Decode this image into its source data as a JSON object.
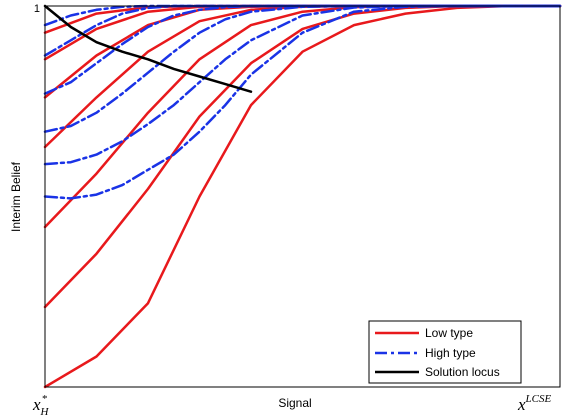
{
  "chart_data": {
    "type": "line",
    "xlabel": "Signal",
    "ylabel": "Interim Belief",
    "x_tick_labels": [
      {
        "base": "x",
        "sub": "H",
        "sup": "*",
        "value": 0
      },
      {
        "base": "x",
        "sub": "",
        "sup": "LCSE",
        "value": 1
      }
    ],
    "y_tick_labels": [
      {
        "label": "1",
        "value": 1
      }
    ],
    "xlim": [
      0,
      1
    ],
    "ylim": [
      0,
      1
    ],
    "grid": false,
    "legend": {
      "position": "bottom-right",
      "entries": [
        {
          "label": "Low type",
          "color": "#e8191c",
          "style": "solid"
        },
        {
          "label": "High type",
          "color": "#1a33e6",
          "style": "dashdot"
        },
        {
          "label": "Solution locus",
          "color": "#000000",
          "style": "solid"
        }
      ]
    },
    "series": [
      {
        "name": "Low type",
        "color": "#e8191c",
        "style": "solid",
        "curves": [
          {
            "x": [
              0,
              0.1,
              0.2,
              0.3,
              0.4,
              0.5,
              0.6,
              0.7,
              0.8,
              0.9,
              1.0
            ],
            "y": [
              0.0,
              0.08,
              0.22,
              0.5,
              0.74,
              0.88,
              0.95,
              0.98,
              0.995,
              1.0,
              1.0
            ]
          },
          {
            "x": [
              0,
              0.1,
              0.2,
              0.3,
              0.4,
              0.5,
              0.6,
              0.7,
              0.8,
              0.9,
              1.0
            ],
            "y": [
              0.21,
              0.35,
              0.52,
              0.71,
              0.85,
              0.94,
              0.98,
              0.995,
              1.0,
              1.0,
              1.0
            ]
          },
          {
            "x": [
              0,
              0.1,
              0.2,
              0.3,
              0.4,
              0.5,
              0.6,
              0.7,
              0.8,
              0.9,
              1.0
            ],
            "y": [
              0.42,
              0.56,
              0.72,
              0.86,
              0.95,
              0.985,
              0.997,
              1.0,
              1.0,
              1.0,
              1.0
            ]
          },
          {
            "x": [
              0,
              0.1,
              0.2,
              0.3,
              0.4,
              0.5,
              0.6,
              0.7,
              0.8,
              0.9,
              1.0
            ],
            "y": [
              0.63,
              0.76,
              0.88,
              0.96,
              0.99,
              0.998,
              1.0,
              1.0,
              1.0,
              1.0,
              1.0
            ]
          },
          {
            "x": [
              0,
              0.1,
              0.2,
              0.3,
              0.4,
              0.5,
              0.6,
              0.7,
              0.8,
              0.9,
              1.0
            ],
            "y": [
              0.76,
              0.87,
              0.95,
              0.99,
              0.998,
              1.0,
              1.0,
              1.0,
              1.0,
              1.0,
              1.0
            ]
          },
          {
            "x": [
              0,
              0.1,
              0.2,
              0.3,
              0.4,
              0.5,
              0.6,
              0.7,
              0.8,
              0.9,
              1.0
            ],
            "y": [
              0.86,
              0.94,
              0.985,
              0.998,
              1.0,
              1.0,
              1.0,
              1.0,
              1.0,
              1.0,
              1.0
            ]
          },
          {
            "x": [
              0,
              0.1,
              0.2,
              0.3,
              0.4,
              0.5,
              0.6,
              0.7,
              0.8,
              0.9,
              1.0
            ],
            "y": [
              0.93,
              0.98,
              0.997,
              1.0,
              1.0,
              1.0,
              1.0,
              1.0,
              1.0,
              1.0,
              1.0
            ]
          }
        ]
      },
      {
        "name": "High type",
        "color": "#1a33e6",
        "style": "dashdot",
        "curves": [
          {
            "x": [
              0,
              0.05,
              0.1,
              0.15,
              0.2,
              0.25,
              0.3,
              0.35,
              0.4,
              0.5,
              0.6,
              0.7,
              0.8,
              0.9,
              1.0
            ],
            "y": [
              0.5,
              0.495,
              0.505,
              0.53,
              0.57,
              0.61,
              0.67,
              0.74,
              0.82,
              0.93,
              0.985,
              0.998,
              1.0,
              1.0,
              1.0
            ]
          },
          {
            "x": [
              0,
              0.05,
              0.1,
              0.15,
              0.2,
              0.25,
              0.3,
              0.35,
              0.4,
              0.5,
              0.6,
              0.7,
              0.8,
              0.9,
              1.0
            ],
            "y": [
              0.585,
              0.59,
              0.61,
              0.645,
              0.69,
              0.74,
              0.8,
              0.86,
              0.91,
              0.975,
              0.996,
              1.0,
              1.0,
              1.0,
              1.0
            ]
          },
          {
            "x": [
              0,
              0.05,
              0.1,
              0.15,
              0.2,
              0.25,
              0.3,
              0.35,
              0.4,
              0.5,
              0.6,
              0.7,
              0.8,
              0.9,
              1.0
            ],
            "y": [
              0.67,
              0.685,
              0.72,
              0.77,
              0.825,
              0.88,
              0.93,
              0.965,
              0.985,
              0.998,
              1.0,
              1.0,
              1.0,
              1.0,
              1.0
            ]
          },
          {
            "x": [
              0,
              0.05,
              0.1,
              0.15,
              0.2,
              0.25,
              0.3,
              0.35,
              0.4,
              0.5,
              0.6,
              0.7,
              0.8,
              0.9,
              1.0
            ],
            "y": [
              0.77,
              0.8,
              0.85,
              0.9,
              0.945,
              0.975,
              0.99,
              0.997,
              1.0,
              1.0,
              1.0,
              1.0,
              1.0,
              1.0,
              1.0
            ]
          },
          {
            "x": [
              0,
              0.05,
              0.1,
              0.15,
              0.2,
              0.25,
              0.3,
              0.35,
              0.4,
              0.5,
              0.6,
              0.7,
              0.8,
              0.9,
              1.0
            ],
            "y": [
              0.87,
              0.91,
              0.95,
              0.98,
              0.995,
              1.0,
              1.0,
              1.0,
              1.0,
              1.0,
              1.0,
              1.0,
              1.0,
              1.0,
              1.0
            ]
          },
          {
            "x": [
              0,
              0.05,
              0.1,
              0.15,
              0.2,
              0.25,
              0.3,
              0.35,
              0.4,
              0.5,
              0.6,
              0.7,
              0.8,
              0.9,
              1.0
            ],
            "y": [
              0.95,
              0.975,
              0.99,
              0.998,
              1.0,
              1.0,
              1.0,
              1.0,
              1.0,
              1.0,
              1.0,
              1.0,
              1.0,
              1.0,
              1.0
            ]
          }
        ]
      },
      {
        "name": "Solution locus",
        "color": "#000000",
        "style": "solid",
        "curves": [
          {
            "x": [
              0.0,
              0.05,
              0.1,
              0.15,
              0.2,
              0.25,
              0.3,
              0.35,
              0.4
            ],
            "y": [
              1.0,
              0.945,
              0.905,
              0.88,
              0.86,
              0.835,
              0.815,
              0.795,
              0.775
            ]
          }
        ]
      }
    ]
  }
}
